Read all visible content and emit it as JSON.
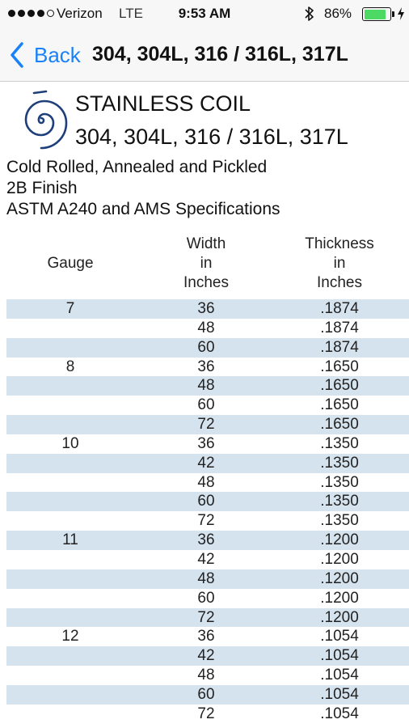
{
  "status_bar": {
    "carrier": "Verizon",
    "network": "LTE",
    "time": "9:53 AM",
    "battery_percent": "86%",
    "battery_level": 0.86,
    "signal_bars_filled": 4,
    "signal_bars_total": 5
  },
  "nav": {
    "back_label": "Back",
    "title": "304, 304L, 316 / 316L, 317L"
  },
  "header": {
    "product_title": "STAINLESS COIL",
    "product_grades": "304, 304L, 316 / 316L, 317L",
    "spec_lines": [
      "Cold Rolled, Annealed and Pickled",
      "2B Finish",
      "ASTM A240 and AMS Specifications"
    ]
  },
  "table": {
    "headers": {
      "gauge": "Gauge",
      "width": [
        "Width",
        "in",
        "Inches"
      ],
      "thickness": [
        "Thickness",
        "in",
        "Inches"
      ]
    },
    "rows": [
      {
        "gauge": "7",
        "width": "36",
        "thickness": ".1874"
      },
      {
        "gauge": "",
        "width": "48",
        "thickness": ".1874"
      },
      {
        "gauge": "",
        "width": "60",
        "thickness": ".1874"
      },
      {
        "gauge": "8",
        "width": "36",
        "thickness": ".1650"
      },
      {
        "gauge": "",
        "width": "48",
        "thickness": ".1650"
      },
      {
        "gauge": "",
        "width": "60",
        "thickness": ".1650"
      },
      {
        "gauge": "",
        "width": "72",
        "thickness": ".1650"
      },
      {
        "gauge": "10",
        "width": "36",
        "thickness": ".1350"
      },
      {
        "gauge": "",
        "width": "42",
        "thickness": ".1350"
      },
      {
        "gauge": "",
        "width": "48",
        "thickness": ".1350"
      },
      {
        "gauge": "",
        "width": "60",
        "thickness": ".1350"
      },
      {
        "gauge": "",
        "width": "72",
        "thickness": ".1350"
      },
      {
        "gauge": "11",
        "width": "36",
        "thickness": ".1200"
      },
      {
        "gauge": "",
        "width": "42",
        "thickness": ".1200"
      },
      {
        "gauge": "",
        "width": "48",
        "thickness": ".1200"
      },
      {
        "gauge": "",
        "width": "60",
        "thickness": ".1200"
      },
      {
        "gauge": "",
        "width": "72",
        "thickness": ".1200"
      },
      {
        "gauge": "12",
        "width": "36",
        "thickness": ".1054"
      },
      {
        "gauge": "",
        "width": "42",
        "thickness": ".1054"
      },
      {
        "gauge": "",
        "width": "48",
        "thickness": ".1054"
      },
      {
        "gauge": "",
        "width": "60",
        "thickness": ".1054"
      },
      {
        "gauge": "",
        "width": "72",
        "thickness": ".1054"
      }
    ]
  },
  "icons": {
    "signal": "signal-dots-icon",
    "bluetooth": "bluetooth-icon",
    "battery": "battery-icon",
    "charging": "charging-bolt-icon",
    "back": "chevron-left-icon",
    "logo": "coil-spiral-logo"
  },
  "colors": {
    "accent": "#1a82f7",
    "row_shade": "#d5e3ef",
    "battery": "#4cd964",
    "logo": "#1f3f7a"
  }
}
